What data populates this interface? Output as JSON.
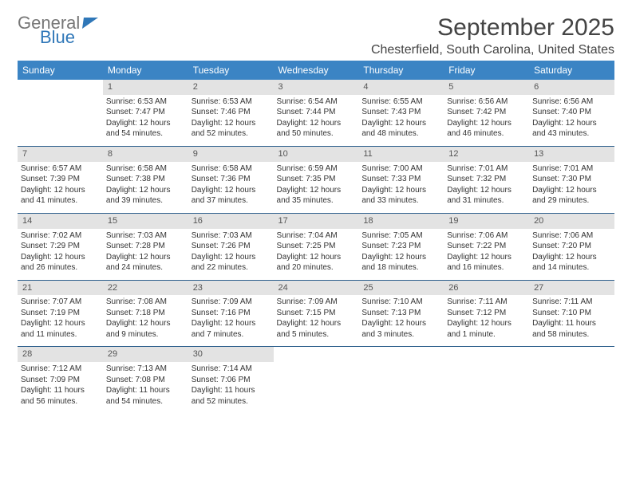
{
  "logo": {
    "line1": "General",
    "line2": "Blue"
  },
  "header": {
    "title": "September 2025",
    "subtitle": "Chesterfield, South Carolina, United States"
  },
  "colors": {
    "header_bg": "#3b84c4",
    "header_fg": "#ffffff",
    "daynum_bg": "#e3e3e3",
    "row_border": "#2d5f8c",
    "logo_gray": "#777777",
    "logo_blue": "#2f77b8"
  },
  "weekdays": [
    "Sunday",
    "Monday",
    "Tuesday",
    "Wednesday",
    "Thursday",
    "Friday",
    "Saturday"
  ],
  "weeks": [
    [
      {
        "blank": true
      },
      {
        "n": "1",
        "sr": "6:53 AM",
        "ss": "7:47 PM",
        "dl": "12 hours and 54 minutes."
      },
      {
        "n": "2",
        "sr": "6:53 AM",
        "ss": "7:46 PM",
        "dl": "12 hours and 52 minutes."
      },
      {
        "n": "3",
        "sr": "6:54 AM",
        "ss": "7:44 PM",
        "dl": "12 hours and 50 minutes."
      },
      {
        "n": "4",
        "sr": "6:55 AM",
        "ss": "7:43 PM",
        "dl": "12 hours and 48 minutes."
      },
      {
        "n": "5",
        "sr": "6:56 AM",
        "ss": "7:42 PM",
        "dl": "12 hours and 46 minutes."
      },
      {
        "n": "6",
        "sr": "6:56 AM",
        "ss": "7:40 PM",
        "dl": "12 hours and 43 minutes."
      }
    ],
    [
      {
        "n": "7",
        "sr": "6:57 AM",
        "ss": "7:39 PM",
        "dl": "12 hours and 41 minutes."
      },
      {
        "n": "8",
        "sr": "6:58 AM",
        "ss": "7:38 PM",
        "dl": "12 hours and 39 minutes."
      },
      {
        "n": "9",
        "sr": "6:58 AM",
        "ss": "7:36 PM",
        "dl": "12 hours and 37 minutes."
      },
      {
        "n": "10",
        "sr": "6:59 AM",
        "ss": "7:35 PM",
        "dl": "12 hours and 35 minutes."
      },
      {
        "n": "11",
        "sr": "7:00 AM",
        "ss": "7:33 PM",
        "dl": "12 hours and 33 minutes."
      },
      {
        "n": "12",
        "sr": "7:01 AM",
        "ss": "7:32 PM",
        "dl": "12 hours and 31 minutes."
      },
      {
        "n": "13",
        "sr": "7:01 AM",
        "ss": "7:30 PM",
        "dl": "12 hours and 29 minutes."
      }
    ],
    [
      {
        "n": "14",
        "sr": "7:02 AM",
        "ss": "7:29 PM",
        "dl": "12 hours and 26 minutes."
      },
      {
        "n": "15",
        "sr": "7:03 AM",
        "ss": "7:28 PM",
        "dl": "12 hours and 24 minutes."
      },
      {
        "n": "16",
        "sr": "7:03 AM",
        "ss": "7:26 PM",
        "dl": "12 hours and 22 minutes."
      },
      {
        "n": "17",
        "sr": "7:04 AM",
        "ss": "7:25 PM",
        "dl": "12 hours and 20 minutes."
      },
      {
        "n": "18",
        "sr": "7:05 AM",
        "ss": "7:23 PM",
        "dl": "12 hours and 18 minutes."
      },
      {
        "n": "19",
        "sr": "7:06 AM",
        "ss": "7:22 PM",
        "dl": "12 hours and 16 minutes."
      },
      {
        "n": "20",
        "sr": "7:06 AM",
        "ss": "7:20 PM",
        "dl": "12 hours and 14 minutes."
      }
    ],
    [
      {
        "n": "21",
        "sr": "7:07 AM",
        "ss": "7:19 PM",
        "dl": "12 hours and 11 minutes."
      },
      {
        "n": "22",
        "sr": "7:08 AM",
        "ss": "7:18 PM",
        "dl": "12 hours and 9 minutes."
      },
      {
        "n": "23",
        "sr": "7:09 AM",
        "ss": "7:16 PM",
        "dl": "12 hours and 7 minutes."
      },
      {
        "n": "24",
        "sr": "7:09 AM",
        "ss": "7:15 PM",
        "dl": "12 hours and 5 minutes."
      },
      {
        "n": "25",
        "sr": "7:10 AM",
        "ss": "7:13 PM",
        "dl": "12 hours and 3 minutes."
      },
      {
        "n": "26",
        "sr": "7:11 AM",
        "ss": "7:12 PM",
        "dl": "12 hours and 1 minute."
      },
      {
        "n": "27",
        "sr": "7:11 AM",
        "ss": "7:10 PM",
        "dl": "11 hours and 58 minutes."
      }
    ],
    [
      {
        "n": "28",
        "sr": "7:12 AM",
        "ss": "7:09 PM",
        "dl": "11 hours and 56 minutes."
      },
      {
        "n": "29",
        "sr": "7:13 AM",
        "ss": "7:08 PM",
        "dl": "11 hours and 54 minutes."
      },
      {
        "n": "30",
        "sr": "7:14 AM",
        "ss": "7:06 PM",
        "dl": "11 hours and 52 minutes."
      },
      {
        "blank": true
      },
      {
        "blank": true
      },
      {
        "blank": true
      },
      {
        "blank": true
      }
    ]
  ],
  "labels": {
    "sunrise": "Sunrise:",
    "sunset": "Sunset:",
    "daylight": "Daylight:"
  }
}
